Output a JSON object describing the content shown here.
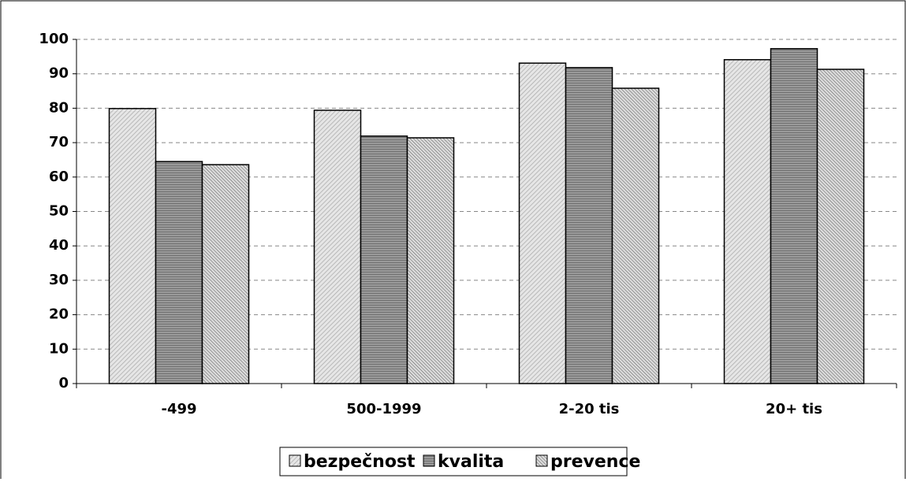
{
  "chart_data": {
    "type": "bar",
    "categories": [
      "-499",
      "500-1999",
      "2-20 tis",
      "20+ tis"
    ],
    "series": [
      {
        "name": "bezpečnost",
        "color": "#d9d9d9",
        "values": [
          79.9,
          79.4,
          93.1,
          94.1
        ]
      },
      {
        "name": "kvalita",
        "color": "#808080",
        "values": [
          64.5,
          71.9,
          91.8,
          97.3
        ]
      },
      {
        "name": "prevence",
        "color": "#b3b3b3",
        "values": [
          63.6,
          71.4,
          85.8,
          91.3
        ]
      }
    ],
    "ylim": [
      0,
      100
    ],
    "yticks": [
      0,
      10,
      20,
      30,
      40,
      50,
      60,
      70,
      80,
      90,
      100
    ],
    "grid": true
  }
}
